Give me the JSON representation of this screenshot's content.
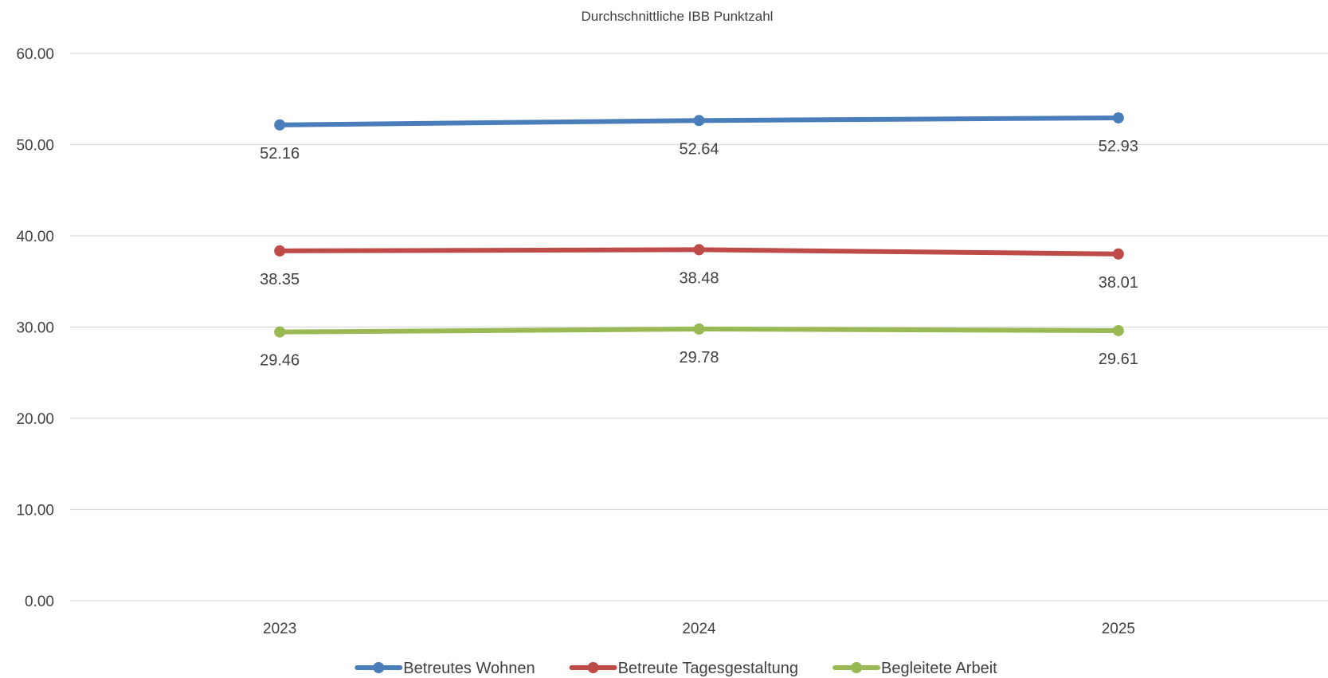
{
  "chart_data": {
    "type": "line",
    "title": "Durchschnittliche IBB Punktzahl",
    "xlabel": "",
    "ylabel": "",
    "categories": [
      "2023",
      "2024",
      "2025"
    ],
    "ylim": [
      0,
      60
    ],
    "yticks": [
      "0.00",
      "10.00",
      "20.00",
      "30.00",
      "40.00",
      "50.00",
      "60.00"
    ],
    "grid": true,
    "legend_position": "bottom",
    "series": [
      {
        "name": "Betreutes Wohnen",
        "color": "#4a7ebb",
        "values": [
          52.16,
          52.64,
          52.93
        ],
        "labels": [
          "52.16",
          "52.64",
          "52.93"
        ]
      },
      {
        "name": "Betreute Tagesgestaltung",
        "color": "#be4b48",
        "values": [
          38.35,
          38.48,
          38.01
        ],
        "labels": [
          "38.35",
          "38.48",
          "38.01"
        ]
      },
      {
        "name": "Begleitete Arbeit",
        "color": "#98b954",
        "values": [
          29.46,
          29.78,
          29.61
        ],
        "labels": [
          "29.46",
          "29.78",
          "29.61"
        ]
      }
    ]
  }
}
